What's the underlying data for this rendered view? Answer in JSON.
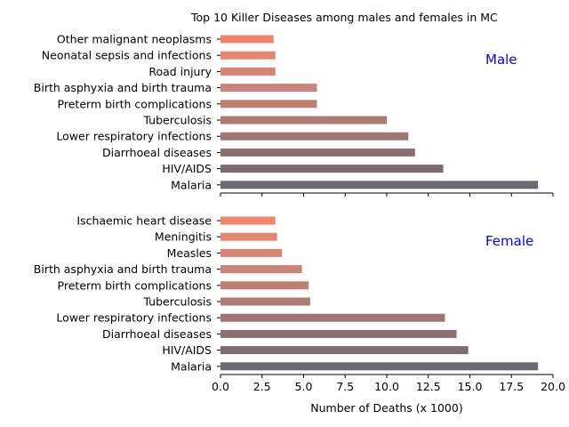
{
  "chart_data": {
    "type": "bar",
    "orientation": "horizontal",
    "title": "Top 10 Killer Diseases among males and females in MC",
    "xlabel": "Number of Deaths (x 1000)",
    "xlim": [
      0,
      20
    ],
    "xticks": [
      "0.0",
      "2.5",
      "5.0",
      "7.5",
      "10.0",
      "12.5",
      "15.0",
      "17.5",
      "20.0"
    ],
    "grid": false,
    "panels": [
      {
        "tag": "Male",
        "tag_color": "#0000ff",
        "categories": [
          "Other malignant neoplasms",
          "Neonatal sepsis and infections",
          "Road injury",
          "Birth asphyxia and birth trauma",
          "Preterm birth complications",
          "Tuberculosis",
          "Lower respiratory infections",
          "Diarrhoeal diseases",
          "HIV/AIDS",
          "Malaria"
        ],
        "values": [
          3.2,
          3.3,
          3.3,
          5.8,
          5.8,
          10.0,
          11.3,
          11.7,
          13.4,
          19.1
        ]
      },
      {
        "tag": "Female",
        "tag_color": "#0000ff",
        "categories": [
          "Ischaemic heart disease",
          "Meningitis",
          "Measles",
          "Birth asphyxia and birth trauma",
          "Preterm birth complications",
          "Tuberculosis",
          "Lower respiratory infections",
          "Diarrhoeal diseases",
          "HIV/AIDS",
          "Malaria"
        ],
        "values": [
          3.3,
          3.4,
          3.7,
          4.9,
          5.3,
          5.4,
          13.5,
          14.2,
          14.9,
          19.1
        ]
      }
    ],
    "bar_colors": [
      "#f0876a",
      "#e48670",
      "#d88575",
      "#cc837a",
      "#be8070",
      "#b07b72",
      "#9e7572",
      "#8c6f70",
      "#7c6b70",
      "#6a6a72"
    ]
  }
}
